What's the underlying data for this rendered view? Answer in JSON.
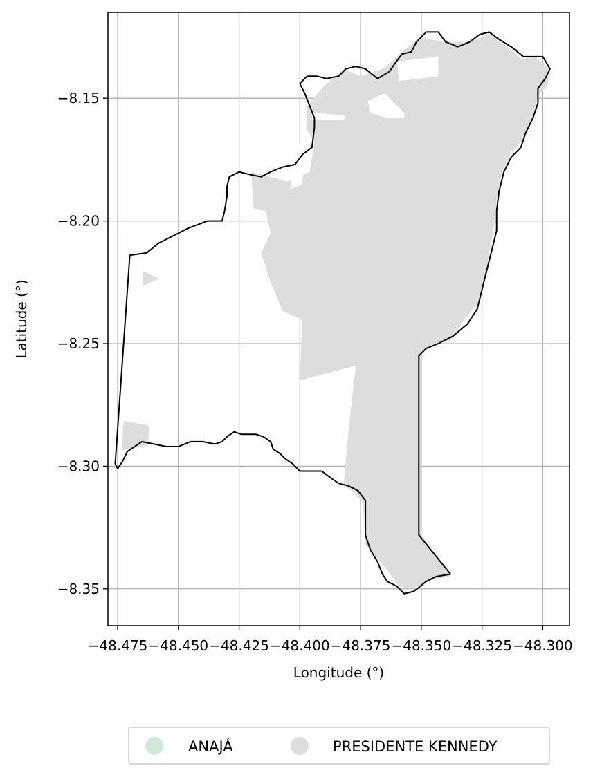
{
  "chart_data": {
    "type": "map",
    "xlabel": "Longitude (°)",
    "ylabel": "Latitude (°)",
    "xlim": [
      -48.479,
      -48.289
    ],
    "ylim": [
      -8.365,
      -8.115
    ],
    "xticks": [
      {
        "value": -48.475,
        "label": "−48.475"
      },
      {
        "value": -48.45,
        "label": "−48.450"
      },
      {
        "value": -48.425,
        "label": "−48.425"
      },
      {
        "value": -48.4,
        "label": "−48.400"
      },
      {
        "value": -48.375,
        "label": "−48.375"
      },
      {
        "value": -48.35,
        "label": "−48.350"
      },
      {
        "value": -48.325,
        "label": "−48.325"
      },
      {
        "value": -48.3,
        "label": "−48.300"
      }
    ],
    "yticks": [
      {
        "value": -8.15,
        "label": "−8.15"
      },
      {
        "value": -8.2,
        "label": "−8.20"
      },
      {
        "value": -8.25,
        "label": "−8.25"
      },
      {
        "value": -8.3,
        "label": "−8.30"
      },
      {
        "value": -8.35,
        "label": "−8.35"
      }
    ],
    "grid": true,
    "legend_position": "bottom-center",
    "legend": [
      {
        "name": "ANAJÁ",
        "color": "#cfe9dc"
      },
      {
        "name": "PRESIDENTE KENNEDY",
        "color": "#dddddd"
      }
    ],
    "regions": [
      {
        "name": "PRESIDENTE KENNEDY",
        "color": "#dddddd",
        "polygons": [
          [
            [
              -48.397,
              -8.153
            ],
            [
              -48.39,
              -8.145
            ],
            [
              -48.382,
              -8.138
            ],
            [
              -48.375,
              -8.141
            ],
            [
              -48.366,
              -8.138
            ],
            [
              -48.361,
              -8.134
            ],
            [
              -48.358,
              -8.131
            ],
            [
              -48.354,
              -8.128
            ],
            [
              -48.35,
              -8.125
            ],
            [
              -48.346,
              -8.126
            ],
            [
              -48.341,
              -8.127
            ],
            [
              -48.336,
              -8.127
            ],
            [
              -48.33,
              -8.127
            ],
            [
              -48.325,
              -8.125
            ],
            [
              -48.321,
              -8.123
            ],
            [
              -48.317,
              -8.127
            ],
            [
              -48.312,
              -8.131
            ],
            [
              -48.309,
              -8.134
            ],
            [
              -48.303,
              -8.133
            ],
            [
              -48.297,
              -8.138
            ],
            [
              -48.298,
              -8.145
            ],
            [
              -48.302,
              -8.149
            ],
            [
              -48.304,
              -8.158
            ],
            [
              -48.308,
              -8.167
            ],
            [
              -48.313,
              -8.172
            ],
            [
              -48.317,
              -8.181
            ],
            [
              -48.319,
              -8.192
            ],
            [
              -48.32,
              -8.202
            ],
            [
              -48.323,
              -8.219
            ],
            [
              -48.327,
              -8.234
            ],
            [
              -48.333,
              -8.241
            ],
            [
              -48.338,
              -8.249
            ],
            [
              -48.344,
              -8.25
            ],
            [
              -48.35,
              -8.254
            ],
            [
              -48.35,
              -8.266
            ],
            [
              -48.35,
              -8.29
            ],
            [
              -48.35,
              -8.328
            ],
            [
              -48.338,
              -8.345
            ],
            [
              -48.345,
              -8.346
            ],
            [
              -48.354,
              -8.35
            ],
            [
              -48.359,
              -8.349
            ],
            [
              -48.366,
              -8.34
            ],
            [
              -48.373,
              -8.332
            ],
            [
              -48.374,
              -8.315
            ],
            [
              -48.377,
              -8.311
            ],
            [
              -48.382,
              -8.308
            ],
            [
              -48.38,
              -8.286
            ],
            [
              -48.377,
              -8.259
            ],
            [
              -48.4,
              -8.265
            ],
            [
              -48.399,
              -8.24
            ],
            [
              -48.407,
              -8.237
            ],
            [
              -48.412,
              -8.225
            ],
            [
              -48.416,
              -8.213
            ],
            [
              -48.412,
              -8.205
            ],
            [
              -48.414,
              -8.196
            ],
            [
              -48.419,
              -8.195
            ],
            [
              -48.42,
              -8.18
            ],
            [
              -48.405,
              -8.184
            ],
            [
              -48.396,
              -8.18
            ],
            [
              -48.395,
              -8.174
            ],
            [
              -48.394,
              -8.168
            ],
            [
              -48.397,
              -8.163
            ]
          ],
          [
            [
              -48.4645,
              -8.2205
            ],
            [
              -48.458,
              -8.2235
            ],
            [
              -48.4645,
              -8.2265
            ]
          ],
          [
            [
              -48.4725,
              -8.2815
            ],
            [
              -48.462,
              -8.2835
            ],
            [
              -48.4625,
              -8.2915
            ],
            [
              -48.4735,
              -8.2935
            ]
          ]
        ]
      }
    ],
    "holes": [
      [
        [
          -48.395,
          -8.156
        ],
        [
          -48.381,
          -8.157
        ],
        [
          -48.382,
          -8.159
        ],
        [
          -48.395,
          -8.159
        ]
      ],
      [
        [
          -48.372,
          -8.151
        ],
        [
          -48.365,
          -8.148
        ],
        [
          -48.357,
          -8.156
        ],
        [
          -48.357,
          -8.158
        ],
        [
          -48.364,
          -8.158
        ],
        [
          -48.371,
          -8.156
        ]
      ],
      [
        [
          -48.359,
          -8.143
        ],
        [
          -48.343,
          -8.141
        ],
        [
          -48.343,
          -8.133
        ],
        [
          -48.36,
          -8.135
        ]
      ],
      [
        [
          -48.399,
          -8.185
        ],
        [
          -48.398,
          -8.17
        ],
        [
          -48.401,
          -8.168
        ],
        [
          -48.404,
          -8.187
        ]
      ]
    ],
    "boundary": [
      [
        -48.47,
        -8.214
      ],
      [
        -48.463,
        -8.213
      ],
      [
        -48.458,
        -8.209
      ],
      [
        -48.452,
        -8.206
      ],
      [
        -48.446,
        -8.203
      ],
      [
        -48.438,
        -8.2
      ],
      [
        -48.432,
        -8.2
      ],
      [
        -48.431,
        -8.196
      ],
      [
        -48.43,
        -8.19
      ],
      [
        -48.43,
        -8.186
      ],
      [
        -48.429,
        -8.182
      ],
      [
        -48.425,
        -8.18
      ],
      [
        -48.421,
        -8.181
      ],
      [
        -48.416,
        -8.182
      ],
      [
        -48.412,
        -8.18
      ],
      [
        -48.407,
        -8.178
      ],
      [
        -48.402,
        -8.177
      ],
      [
        -48.399,
        -8.173
      ],
      [
        -48.395,
        -8.17
      ],
      [
        -48.394,
        -8.162
      ],
      [
        -48.394,
        -8.158
      ],
      [
        -48.396,
        -8.153
      ],
      [
        -48.398,
        -8.148
      ],
      [
        -48.4,
        -8.144
      ],
      [
        -48.397,
        -8.141
      ],
      [
        -48.393,
        -8.141
      ],
      [
        -48.389,
        -8.142
      ],
      [
        -48.384,
        -8.141
      ],
      [
        -48.381,
        -8.138
      ],
      [
        -48.377,
        -8.137
      ],
      [
        -48.373,
        -8.138
      ],
      [
        -48.368,
        -8.142
      ],
      [
        -48.363,
        -8.139
      ],
      [
        -48.361,
        -8.136
      ],
      [
        -48.358,
        -8.132
      ],
      [
        -48.354,
        -8.131
      ],
      [
        -48.352,
        -8.127
      ],
      [
        -48.348,
        -8.123
      ],
      [
        -48.343,
        -8.123
      ],
      [
        -48.34,
        -8.127
      ],
      [
        -48.335,
        -8.129
      ],
      [
        -48.33,
        -8.127
      ],
      [
        -48.326,
        -8.124
      ],
      [
        -48.322,
        -8.123
      ],
      [
        -48.318,
        -8.126
      ],
      [
        -48.313,
        -8.129
      ],
      [
        -48.308,
        -8.133
      ],
      [
        -48.304,
        -8.133
      ],
      [
        -48.3,
        -8.133
      ],
      [
        -48.297,
        -8.138
      ],
      [
        -48.299,
        -8.142
      ],
      [
        -48.302,
        -8.146
      ],
      [
        -48.302,
        -8.152
      ],
      [
        -48.304,
        -8.158
      ],
      [
        -48.307,
        -8.164
      ],
      [
        -48.309,
        -8.17
      ],
      [
        -48.313,
        -8.174
      ],
      [
        -48.316,
        -8.18
      ],
      [
        -48.318,
        -8.188
      ],
      [
        -48.319,
        -8.196
      ],
      [
        -48.319,
        -8.204
      ],
      [
        -48.321,
        -8.212
      ],
      [
        -48.323,
        -8.22
      ],
      [
        -48.325,
        -8.228
      ],
      [
        -48.327,
        -8.236
      ],
      [
        -48.331,
        -8.242
      ],
      [
        -48.337,
        -8.247
      ],
      [
        -48.343,
        -8.25
      ],
      [
        -48.348,
        -8.252
      ],
      [
        -48.351,
        -8.255
      ],
      [
        -48.351,
        -8.3
      ],
      [
        -48.351,
        -8.328
      ],
      [
        -48.338,
        -8.344
      ],
      [
        -48.344,
        -8.345
      ],
      [
        -48.348,
        -8.347
      ],
      [
        -48.353,
        -8.351
      ],
      [
        -48.357,
        -8.352
      ],
      [
        -48.36,
        -8.349
      ],
      [
        -48.364,
        -8.347
      ],
      [
        -48.366,
        -8.344
      ],
      [
        -48.368,
        -8.339
      ],
      [
        -48.371,
        -8.334
      ],
      [
        -48.373,
        -8.328
      ],
      [
        -48.373,
        -8.321
      ],
      [
        -48.373,
        -8.314
      ],
      [
        -48.376,
        -8.31
      ],
      [
        -48.38,
        -8.308
      ],
      [
        -48.384,
        -8.307
      ],
      [
        -48.387,
        -8.305
      ],
      [
        -48.391,
        -8.302
      ],
      [
        -48.395,
        -8.302
      ],
      [
        -48.4,
        -8.302
      ],
      [
        -48.403,
        -8.299
      ],
      [
        -48.406,
        -8.297
      ],
      [
        -48.408,
        -8.295
      ],
      [
        -48.411,
        -8.293
      ],
      [
        -48.412,
        -8.29
      ],
      [
        -48.415,
        -8.288
      ],
      [
        -48.418,
        -8.287
      ],
      [
        -48.421,
        -8.287
      ],
      [
        -48.424,
        -8.287
      ],
      [
        -48.427,
        -8.286
      ],
      [
        -48.43,
        -8.288
      ],
      [
        -48.432,
        -8.29
      ],
      [
        -48.435,
        -8.291
      ],
      [
        -48.44,
        -8.29
      ],
      [
        -48.445,
        -8.29
      ],
      [
        -48.45,
        -8.292
      ],
      [
        -48.455,
        -8.292
      ],
      [
        -48.46,
        -8.291
      ],
      [
        -48.465,
        -8.29
      ],
      [
        -48.468,
        -8.292
      ],
      [
        -48.471,
        -8.294
      ],
      [
        -48.473,
        -8.298
      ],
      [
        -48.475,
        -8.301
      ],
      [
        -48.476,
        -8.299
      ],
      [
        -48.47,
        -8.214
      ]
    ]
  }
}
